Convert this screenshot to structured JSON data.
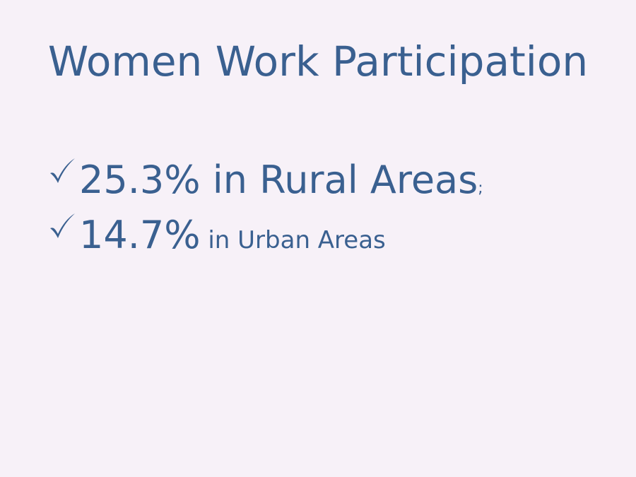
{
  "slide": {
    "title": "Women Work Participation",
    "bullets": [
      {
        "icon": "checkmark-icon",
        "main": "25.3% in Rural Areas",
        "suffix": ";"
      },
      {
        "icon": "checkmark-icon",
        "main": "14.7%",
        "suffix": " in Urban Areas"
      }
    ]
  },
  "colors": {
    "background": "#f7f1f8",
    "text": "#3a6090"
  }
}
